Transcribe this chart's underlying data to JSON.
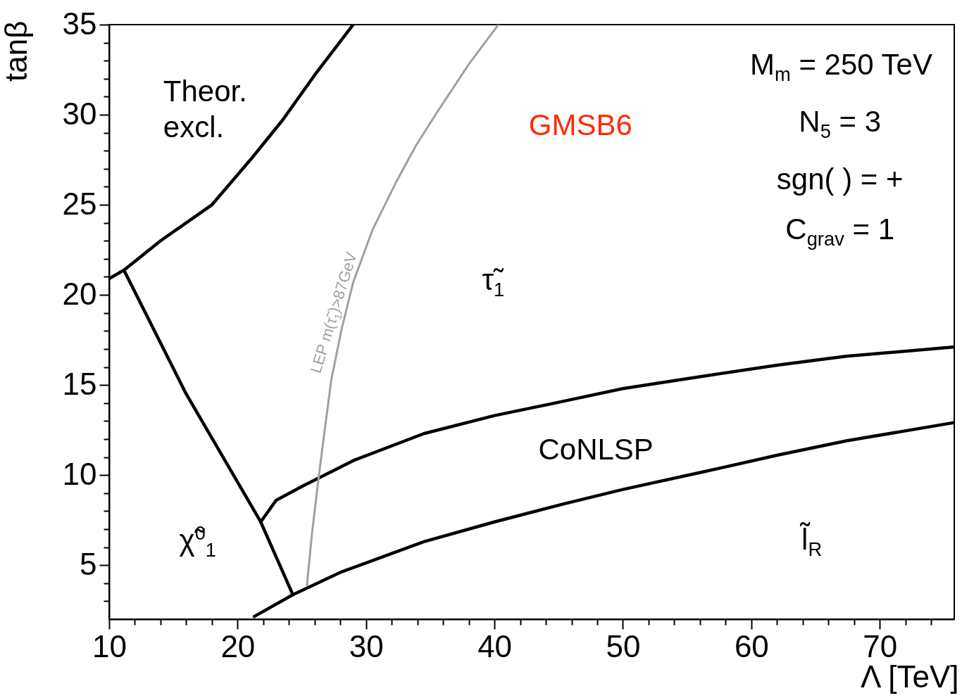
{
  "chart_data": {
    "type": "line",
    "title": "GMSB6",
    "xlabel": "Λ [TeV]",
    "ylabel": "tanβ",
    "xlim": [
      10,
      75.8
    ],
    "ylim": [
      2,
      35
    ],
    "xticks": [
      10,
      {
        "value": 12,
        "label": null
      },
      {
        "value": 14,
        "label": null
      },
      {
        "value": 16,
        "label": null
      },
      {
        "value": 18,
        "label": null
      },
      20,
      {
        "value": 22,
        "label": null
      },
      {
        "value": 24,
        "label": null
      },
      {
        "value": 26,
        "label": null
      },
      {
        "value": 28,
        "label": null
      },
      30,
      {
        "value": 32,
        "label": null
      },
      {
        "value": 34,
        "label": null
      },
      {
        "value": 36,
        "label": null
      },
      {
        "value": 38,
        "label": null
      },
      40,
      {
        "value": 42,
        "label": null
      },
      {
        "value": 44,
        "label": null
      },
      {
        "value": 46,
        "label": null
      },
      {
        "value": 48,
        "label": null
      },
      50,
      {
        "value": 52,
        "label": null
      },
      {
        "value": 54,
        "label": null
      },
      {
        "value": 56,
        "label": null
      },
      {
        "value": 58,
        "label": null
      },
      60,
      {
        "value": 62,
        "label": null
      },
      {
        "value": 64,
        "label": null
      },
      {
        "value": 66,
        "label": null
      },
      {
        "value": 68,
        "label": null
      },
      70,
      {
        "value": 72,
        "label": null
      },
      {
        "value": 74,
        "label": null
      }
    ],
    "yticks": [
      {
        "value": 3,
        "label": null
      },
      {
        "value": 4,
        "label": null
      },
      5,
      {
        "value": 6,
        "label": null
      },
      {
        "value": 7,
        "label": null
      },
      {
        "value": 8,
        "label": null
      },
      {
        "value": 9,
        "label": null
      },
      10,
      {
        "value": 11,
        "label": null
      },
      {
        "value": 12,
        "label": null
      },
      {
        "value": 13,
        "label": null
      },
      {
        "value": 14,
        "label": null
      },
      15,
      {
        "value": 16,
        "label": null
      },
      {
        "value": 17,
        "label": null
      },
      {
        "value": 18,
        "label": null
      },
      {
        "value": 19,
        "label": null
      },
      20,
      {
        "value": 21,
        "label": null
      },
      {
        "value": 22,
        "label": null
      },
      {
        "value": 23,
        "label": null
      },
      {
        "value": 24,
        "label": null
      },
      25,
      {
        "value": 26,
        "label": null
      },
      {
        "value": 27,
        "label": null
      },
      {
        "value": 28,
        "label": null
      },
      {
        "value": 29,
        "label": null
      },
      30,
      {
        "value": 31,
        "label": null
      },
      {
        "value": 32,
        "label": null
      },
      {
        "value": 33,
        "label": null
      },
      {
        "value": 34,
        "label": null
      },
      35
    ],
    "grid": false,
    "marker": "none",
    "line_style": "solid",
    "series": [
      {
        "color": "#000000",
        "x": [
          10,
          11.2,
          14,
          18,
          21,
          23.5,
          26,
          29
        ],
        "values": [
          20.9,
          21.4,
          23.0,
          25.0,
          27.5,
          29.7,
          32.2,
          35
        ]
      },
      {
        "color": "#000000",
        "x": [
          11.2,
          16,
          21.8,
          24.3
        ],
        "values": [
          21.3,
          14.5,
          7.4,
          3.36
        ]
      },
      {
        "color": "#000000",
        "x": [
          21.8,
          23,
          25.1,
          29,
          34.5,
          40,
          45.4,
          50,
          56.4,
          62,
          67.4,
          75.7
        ],
        "values": [
          7.4,
          8.6,
          9.4,
          10.8,
          12.3,
          13.3,
          14.1,
          14.8,
          15.5,
          16.1,
          16.6,
          17.1
        ]
      },
      {
        "color": "#000000",
        "x": [
          21.3,
          24.3,
          28,
          34.5,
          40,
          45.4,
          50,
          56.4,
          62,
          67.4,
          75.7
        ],
        "values": [
          2.15,
          3.36,
          4.6,
          6.3,
          7.4,
          8.4,
          9.2,
          10.2,
          11.1,
          11.9,
          12.9
        ]
      },
      {
        "color": "#a0a0a0",
        "x": [
          25.4,
          25.8,
          26.3,
          26.8,
          27.3,
          28.1,
          29.0,
          30.5,
          32.3,
          33.9,
          35.5,
          38.0,
          40.3
        ],
        "values": [
          3.9,
          6.8,
          9.8,
          12.6,
          15.3,
          18.1,
          20.7,
          23.6,
          26.2,
          28.3,
          30.1,
          32.8,
          35
        ]
      }
    ],
    "annotations": [
      "Theor. excl.",
      "M$_{m}$ = 250 TeV",
      "N$_{5}$ = 3",
      "sgn(  ) = +",
      "C$_{grav}$ =  1",
      "τ̃$_{1}$",
      "CoNLSP",
      "χ̃$^{0}$$_{1}$",
      "l̃$_{R}$",
      "LEP m(τ̃$_{1}$)>87GeV"
    ]
  }
}
